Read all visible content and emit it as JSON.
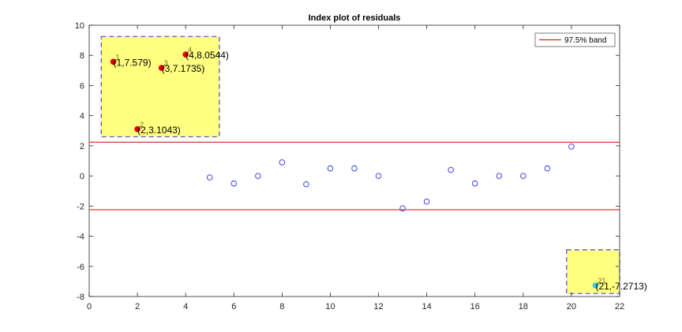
{
  "chart_data": {
    "type": "scatter",
    "title": "Index plot of residuals",
    "xlabel": "",
    "ylabel": "",
    "xlim": [
      0,
      22
    ],
    "ylim": [
      -8,
      10
    ],
    "xticks": [
      0,
      2,
      4,
      6,
      8,
      10,
      12,
      14,
      16,
      18,
      20,
      22
    ],
    "yticks": [
      -8,
      -6,
      -4,
      -2,
      0,
      2,
      4,
      6,
      8,
      10
    ],
    "grid": false,
    "legend": {
      "position": "top-right",
      "entries": [
        "97.5% band"
      ]
    },
    "band": {
      "name": "97.5% band",
      "color": "#e02020",
      "upper": 2.24,
      "lower": -2.24
    },
    "series": [
      {
        "marker": "open-circle",
        "color": "#3030e0",
        "x": [
          5,
          6,
          7,
          8,
          9,
          10,
          11,
          12,
          13,
          14,
          15,
          16,
          17,
          18,
          19,
          20
        ],
        "y": [
          -0.1,
          -0.5,
          0.0,
          0.9,
          -0.55,
          0.5,
          0.5,
          0.0,
          -2.15,
          -1.7,
          0.4,
          -0.5,
          0.0,
          0.0,
          0.5,
          1.95
        ]
      }
    ],
    "outliers": [
      {
        "x": 1,
        "y": 7.579,
        "index": "1",
        "label": "(1,7.579)",
        "color": "#e00000"
      },
      {
        "x": 2,
        "y": 3.1043,
        "index": "2",
        "label": "(2,3.1043)",
        "color": "#e00000"
      },
      {
        "x": 3,
        "y": 7.1735,
        "index": "3",
        "label": "(3,7.1735)",
        "color": "#e00000"
      },
      {
        "x": 4,
        "y": 8.0544,
        "index": "4",
        "label": "(4,8.0544)",
        "color": "#e00000"
      },
      {
        "x": 21,
        "y": -7.2713,
        "index": "21",
        "label": "(21,-7.2713)",
        "color": "#40c8d8"
      }
    ],
    "highlight_boxes": [
      {
        "x_range": [
          0.5,
          5.4
        ],
        "y_range": [
          2.6,
          9.25
        ],
        "fill": "#ffff80"
      },
      {
        "x_range": [
          19.8,
          22
        ],
        "y_range": [
          -7.8,
          -4.9
        ],
        "fill": "#ffff80"
      }
    ]
  }
}
